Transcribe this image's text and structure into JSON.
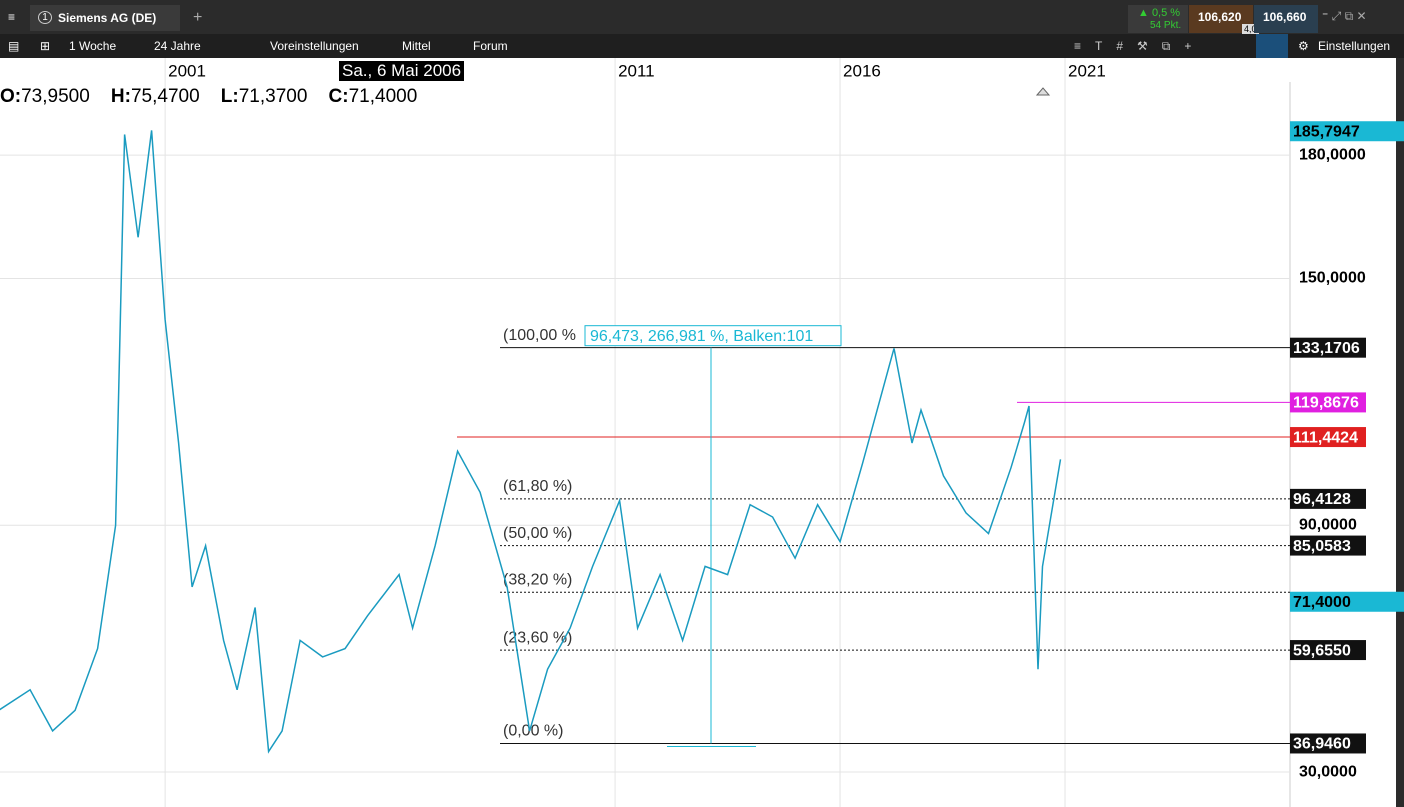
{
  "header": {
    "instrument": "Siemens AG (DE)",
    "tab_number": "1",
    "change_pct": "▲ 0,5 %",
    "change_pts": "54 Pkt.",
    "bid": "106,620",
    "spread": "4,0",
    "ask": "106,660"
  },
  "toolbar": {
    "interval": "1 Woche",
    "range": "24 Jahre",
    "presets": "Voreinstellungen",
    "average": "Mittel",
    "forum": "Forum",
    "settings": "Einstellungen"
  },
  "ohlc": {
    "o_label": "O:",
    "o": "73,9500",
    "h_label": "H:",
    "h": "75,4700",
    "l_label": "L:",
    "l": "71,3700",
    "c_label": "C:",
    "c": "71,4000"
  },
  "cursor_date": "Sa., 6 Mai 2006",
  "chart_data": {
    "type": "line",
    "color": "#1a9bc0",
    "xlim": [
      1997.33,
      2026.0
    ],
    "ylim": [
      21.5,
      203.6
    ],
    "xticks": [
      2001,
      2011,
      2016,
      2021
    ],
    "yticks": [
      {
        "value": 180,
        "label": "180,0000"
      },
      {
        "value": 150,
        "label": "150,0000"
      },
      {
        "value": 90,
        "label": "90,0000"
      },
      {
        "value": 30,
        "label": "30,0000"
      }
    ],
    "x": [
      1997.3,
      1998,
      1998.5,
      1999,
      1999.5,
      1999.9,
      2000.1,
      2000.4,
      2000.7,
      2001,
      2001.3,
      2001.6,
      2001.9,
      2002.3,
      2002.6,
      2003,
      2003.3,
      2003.6,
      2004,
      2004.5,
      2005,
      2005.5,
      2006.2,
      2006.5,
      2007,
      2007.5,
      2008,
      2008.6,
      2009.1,
      2009.5,
      2010,
      2010.5,
      2011.1,
      2011.5,
      2012,
      2012.5,
      2013,
      2013.5,
      2014,
      2014.5,
      2015,
      2015.5,
      2016,
      2016.5,
      2017.2,
      2017.6,
      2017.8,
      2018.3,
      2018.8,
      2019.3,
      2019.8,
      2020.1,
      2020.2,
      2020.4,
      2020.5,
      2020.9
    ],
    "values": [
      45,
      50,
      40,
      45,
      60,
      90,
      185,
      160,
      186,
      140,
      110,
      75,
      85,
      62,
      50,
      70,
      35,
      40,
      62,
      58,
      60,
      68,
      78,
      65,
      85,
      108,
      98,
      75,
      40,
      55,
      65,
      80,
      96,
      65,
      78,
      62,
      80,
      78,
      95,
      92,
      82,
      95,
      86,
      105,
      133,
      110,
      118,
      102,
      93,
      88,
      104,
      115,
      119,
      55,
      80,
      106
    ],
    "price_markers": [
      {
        "value": 185.7947,
        "label": "185,7947",
        "color": "#1ab8d4"
      },
      {
        "value": 133.1706,
        "label": "133,1706",
        "color": "#111111"
      },
      {
        "value": 119.8676,
        "label": "119,8676",
        "color": "#e020e0"
      },
      {
        "value": 111.4424,
        "label": "111,4424",
        "color": "#e02020"
      },
      {
        "value": 96.4128,
        "label": "96,4128",
        "color": "#111111"
      },
      {
        "value": 85.0583,
        "label": "85,0583",
        "color": "#111111"
      },
      {
        "value": 71.4,
        "label": "71,4000",
        "color": "#1ab8d4"
      },
      {
        "value": 59.655,
        "label": "59,6550",
        "color": "#111111"
      },
      {
        "value": 36.946,
        "label": "36,9460",
        "color": "#111111"
      }
    ],
    "fib_levels": [
      {
        "value": 133.1706,
        "label": "(100,00 %"
      },
      {
        "value": 96.4128,
        "label": "(61,80 %)"
      },
      {
        "value": 85.0583,
        "label": "(50,00 %)"
      },
      {
        "value": 73.7,
        "label": "(38,20 %)"
      },
      {
        "value": 59.655,
        "label": "(23,60 %)"
      },
      {
        "value": 36.946,
        "label": "(0,00 %)"
      }
    ],
    "measure_label": "96,473, 266,981 %, Balken:101",
    "resistance": {
      "red": 111.4424,
      "magenta": 119.8676
    }
  }
}
